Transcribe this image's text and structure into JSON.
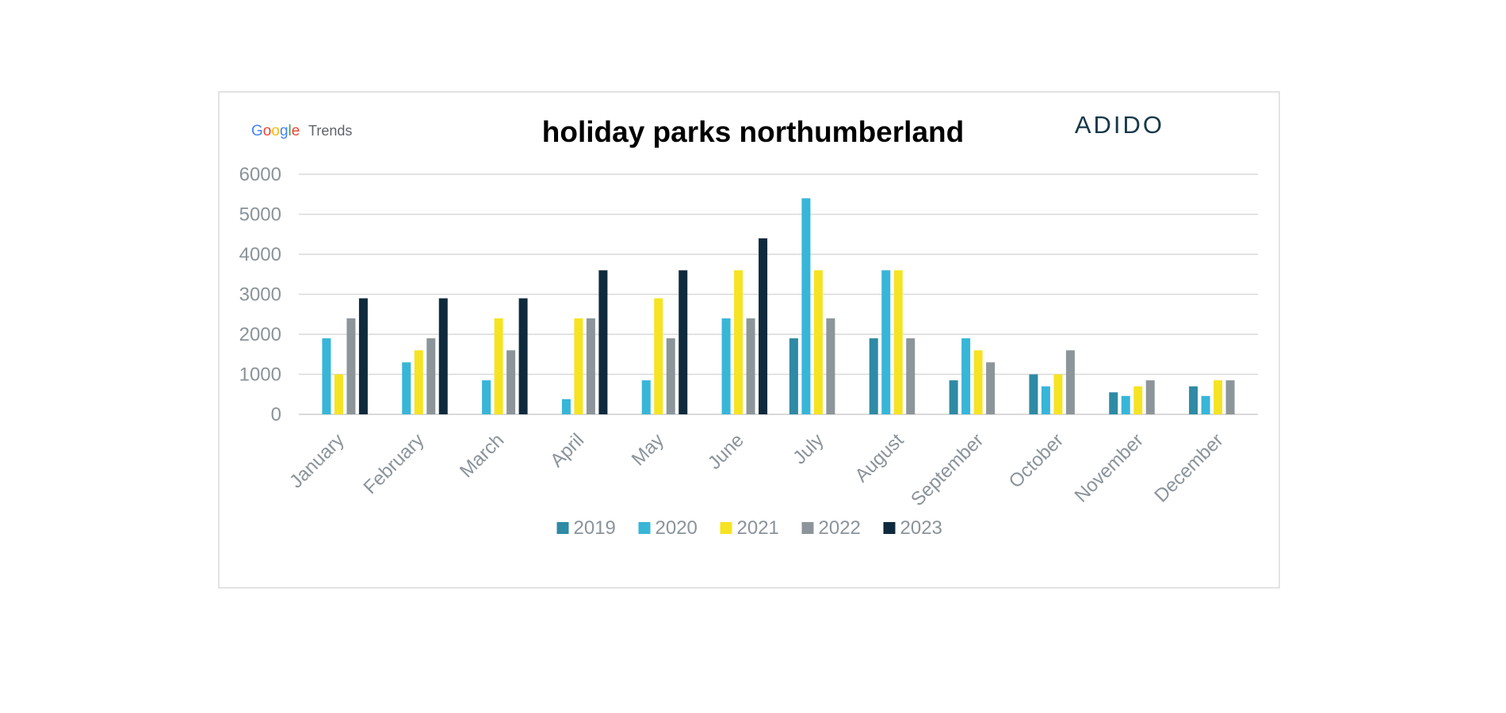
{
  "logos": {
    "google_trends": {
      "google": "Google",
      "trends": "Trends",
      "letter_colors": [
        "#4285F4",
        "#EA4335",
        "#FBBC05",
        "#4285F4",
        "#34A853",
        "#EA4335"
      ]
    },
    "adido": "ADIDO"
  },
  "chart_data": {
    "type": "bar",
    "title": "holiday parks northumberland",
    "xlabel": "",
    "ylabel": "",
    "ylim": [
      0,
      6000
    ],
    "yticks": [
      "0",
      "1000",
      "2000",
      "3000",
      "4000",
      "5000",
      "6000"
    ],
    "grid": true,
    "legend_position": "bottom",
    "categories": [
      "January",
      "February",
      "March",
      "April",
      "May",
      "June",
      "July",
      "August",
      "September",
      "October",
      "November",
      "December"
    ],
    "series": [
      {
        "name": "2019",
        "color": "#2E8AA5",
        "values": [
          null,
          null,
          null,
          null,
          null,
          null,
          1900,
          1900,
          850,
          1000,
          550,
          700
        ]
      },
      {
        "name": "2020",
        "color": "#37B6D8",
        "values": [
          1900,
          1300,
          850,
          380,
          850,
          2400,
          5400,
          3600,
          1900,
          700,
          460,
          460
        ]
      },
      {
        "name": "2021",
        "color": "#F6E322",
        "values": [
          1000,
          1600,
          2400,
          2400,
          2900,
          3600,
          3600,
          3600,
          1600,
          1000,
          700,
          850
        ]
      },
      {
        "name": "2022",
        "color": "#8C959A",
        "values": [
          2400,
          1900,
          1600,
          2400,
          1900,
          2400,
          2400,
          1900,
          1300,
          1600,
          850,
          850
        ]
      },
      {
        "name": "2023",
        "color": "#0F2A3C",
        "values": [
          2900,
          2900,
          2900,
          3600,
          3600,
          4400,
          null,
          null,
          null,
          null,
          null,
          null
        ]
      }
    ]
  }
}
